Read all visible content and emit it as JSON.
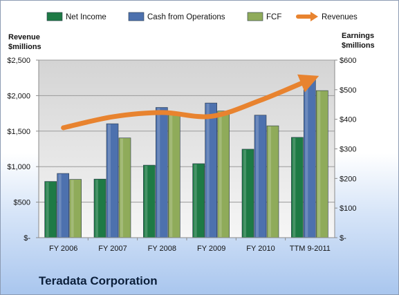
{
  "chart_data": {
    "type": "bar",
    "categories": [
      "FY 2006",
      "FY 2007",
      "FY 2008",
      "FY 2009",
      "FY 2010",
      "TTM 9-2011"
    ],
    "series": [
      {
        "name": "Net Income",
        "axis": "right",
        "color": "#1e7a45",
        "values": [
          190,
          198,
          245,
          250,
          299,
          339
        ]
      },
      {
        "name": "Cash from Operations",
        "axis": "right",
        "color": "#4d71ae",
        "values": [
          217,
          385,
          440,
          455,
          414,
          537
        ]
      },
      {
        "name": "FCF",
        "axis": "right",
        "color": "#8fab5a",
        "values": [
          197,
          337,
          420,
          428,
          378,
          497
        ]
      },
      {
        "name": "Revenues",
        "axis": "left",
        "type": "line",
        "color": "#e8832f",
        "values": [
          1547,
          1702,
          1762,
          1709,
          1936,
          2225
        ]
      }
    ],
    "left_axis": {
      "label_line1": "Revenue",
      "label_line2": "$millions",
      "ylim": [
        0,
        2500
      ],
      "ticks": [
        "$-",
        "$500",
        "$1,000",
        "$1,500",
        "$2,000",
        "$2,500"
      ]
    },
    "right_axis": {
      "label_line1": "Earnings",
      "label_line2": "$millions",
      "ylim": [
        0,
        600
      ],
      "ticks": [
        "$-",
        "$100",
        "$200",
        "$300",
        "$400",
        "$500",
        "$600"
      ]
    },
    "legend": {
      "placement": "top"
    },
    "grid": true,
    "footer_title": "Teradata Corporation"
  }
}
